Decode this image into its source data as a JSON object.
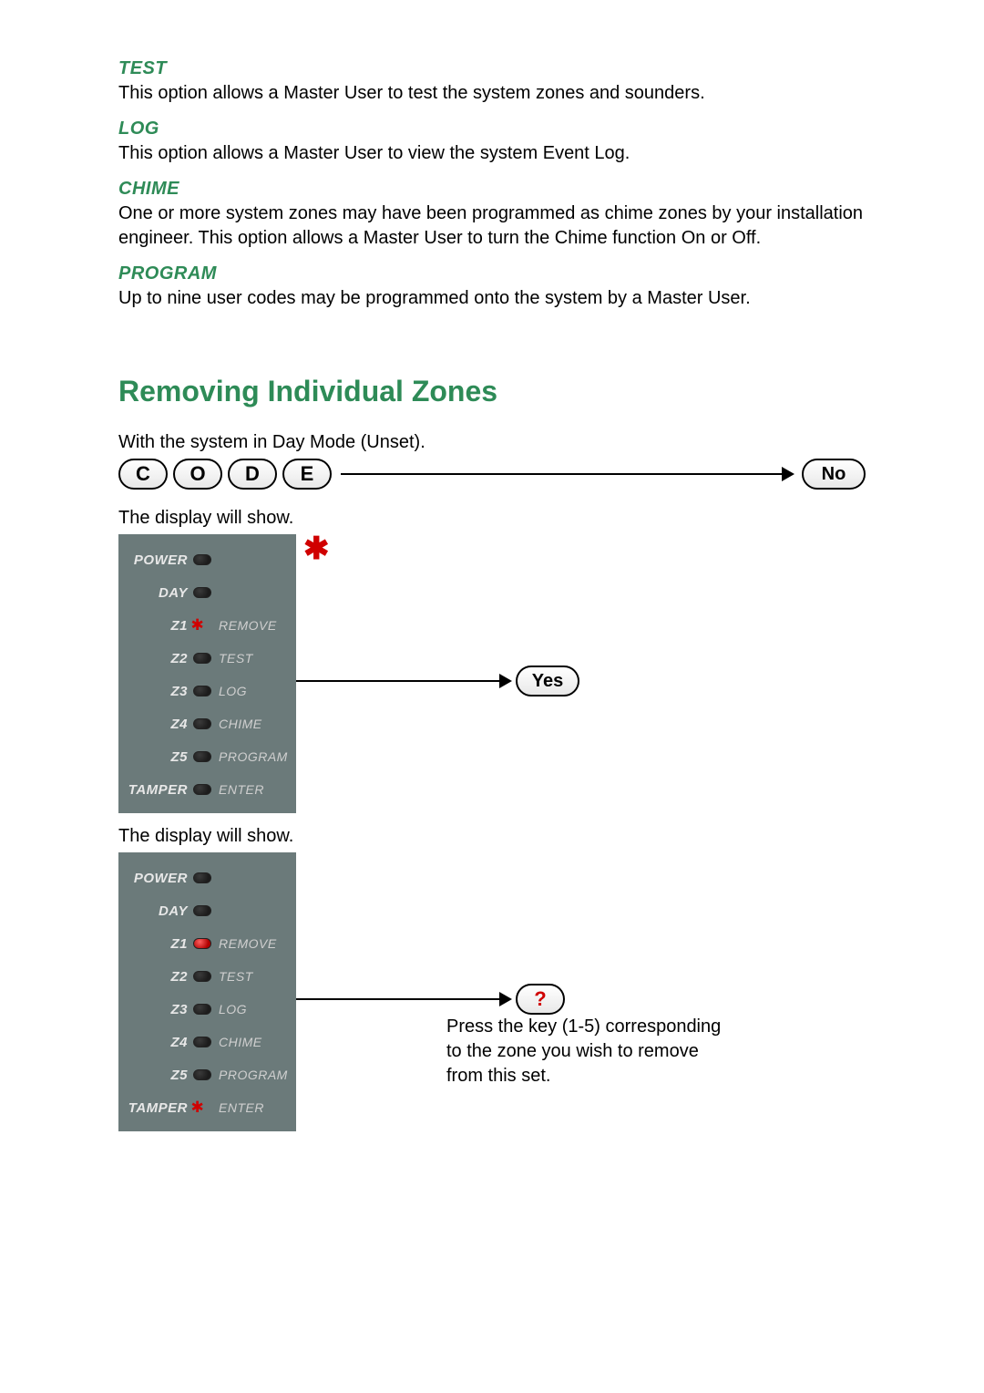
{
  "colors": {
    "heading_green": "#2e8b57",
    "panel_bg": "#6b7a7a",
    "panel_text": "#dcdcdc",
    "led_red": "#d00000",
    "body_text": "#000000",
    "background": "#ffffff"
  },
  "typography": {
    "body_fontsize": 20,
    "heading_fontsize": 32,
    "label_fontsize": 20,
    "panel_fontsize": 15
  },
  "sections": {
    "test": {
      "label": "TEST",
      "text": "This option allows a Master User to test the system zones and sounders."
    },
    "log": {
      "label": "LOG",
      "text": "This option allows a Master User to view the system Event Log."
    },
    "chime": {
      "label": "CHIME",
      "text": "One or more system zones may have been programmed as chime zones by your installation engineer. This option allows a Master User to turn the Chime function On or Off."
    },
    "program": {
      "label": "PROGRAM",
      "text": "Up to nine user codes may be programmed onto the system by a Master User."
    }
  },
  "heading": "Removing Individual Zones",
  "step1_text": "With the system in Day Mode (Unset).",
  "code_keys": [
    "C",
    "O",
    "D",
    "E"
  ],
  "no_label": "No",
  "step2_text": "The display will show.",
  "panel1": {
    "rows": [
      {
        "left": "POWER",
        "led": "off",
        "right": ""
      },
      {
        "left": "DAY",
        "led": "off",
        "right": ""
      },
      {
        "left": "Z1",
        "led": "star",
        "right": "REMOVE"
      },
      {
        "left": "Z2",
        "led": "off",
        "right": "TEST"
      },
      {
        "left": "Z3",
        "led": "off",
        "right": "LOG"
      },
      {
        "left": "Z4",
        "led": "off",
        "right": "CHIME"
      },
      {
        "left": "Z5",
        "led": "off",
        "right": "PROGRAM"
      },
      {
        "left": "TAMPER",
        "led": "off",
        "right": "ENTER"
      }
    ]
  },
  "yes_label": "Yes",
  "step3_text": "The display will show.",
  "panel2": {
    "rows": [
      {
        "left": "POWER",
        "led": "off",
        "right": ""
      },
      {
        "left": "DAY",
        "led": "off",
        "right": ""
      },
      {
        "left": "Z1",
        "led": "red",
        "right": "REMOVE"
      },
      {
        "left": "Z2",
        "led": "off",
        "right": "TEST"
      },
      {
        "left": "Z3",
        "led": "off",
        "right": "LOG"
      },
      {
        "left": "Z4",
        "led": "off",
        "right": "CHIME"
      },
      {
        "left": "Z5",
        "led": "off",
        "right": "PROGRAM"
      },
      {
        "left": "TAMPER",
        "led": "star",
        "right": "ENTER"
      }
    ]
  },
  "q_label": "?",
  "note": "Press the key (1-5) corresponding to the zone you wish to remove from this set.",
  "star_symbol": "✱"
}
